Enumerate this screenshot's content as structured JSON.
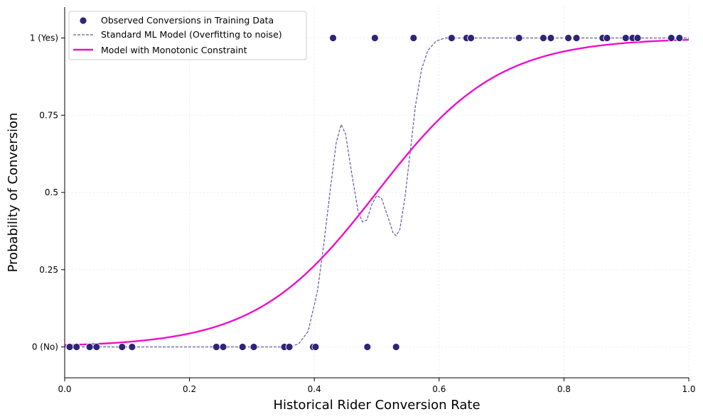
{
  "chart_data": {
    "type": "scatter",
    "xlabel": "Historical Rider Conversion Rate",
    "ylabel": "Probability of Conversion",
    "xlim": [
      0.0,
      1.0
    ],
    "ylim": [
      -0.1,
      1.1
    ],
    "grid": true,
    "legend_position": "top-left",
    "x_ticks": [
      {
        "value": 0.0,
        "label": "0.0"
      },
      {
        "value": 0.2,
        "label": "0.2"
      },
      {
        "value": 0.4,
        "label": "0.4"
      },
      {
        "value": 0.6,
        "label": "0.6"
      },
      {
        "value": 0.8,
        "label": "0.8"
      },
      {
        "value": 1.0,
        "label": "1.0"
      }
    ],
    "y_ticks": [
      {
        "value": 0.0,
        "label": "0 (No)"
      },
      {
        "value": 0.25,
        "label": "0.25"
      },
      {
        "value": 0.5,
        "label": "0.5"
      },
      {
        "value": 0.75,
        "label": "0.75"
      },
      {
        "value": 1.0,
        "label": "1 (Yes)"
      }
    ],
    "series": [
      {
        "name": "Observed Conversions in Training Data",
        "kind": "scatter",
        "color": "#2e2478",
        "points": [
          [
            0.008,
            0
          ],
          [
            0.019,
            0
          ],
          [
            0.04,
            0
          ],
          [
            0.051,
            0
          ],
          [
            0.092,
            0
          ],
          [
            0.108,
            0
          ],
          [
            0.243,
            0
          ],
          [
            0.254,
            0
          ],
          [
            0.285,
            0
          ],
          [
            0.303,
            0
          ],
          [
            0.352,
            0
          ],
          [
            0.36,
            0
          ],
          [
            0.398,
            0
          ],
          [
            0.402,
            0
          ],
          [
            0.485,
            0
          ],
          [
            0.531,
            0
          ],
          [
            0.43,
            1
          ],
          [
            0.497,
            1
          ],
          [
            0.559,
            1
          ],
          [
            0.62,
            1
          ],
          [
            0.644,
            1
          ],
          [
            0.651,
            1
          ],
          [
            0.728,
            1
          ],
          [
            0.767,
            1
          ],
          [
            0.779,
            1
          ],
          [
            0.807,
            1
          ],
          [
            0.82,
            1
          ],
          [
            0.862,
            1
          ],
          [
            0.869,
            1
          ],
          [
            0.899,
            1
          ],
          [
            0.91,
            1
          ],
          [
            0.918,
            1
          ],
          [
            0.972,
            1
          ],
          [
            0.985,
            1
          ]
        ]
      },
      {
        "name": "Standard ML Model (Overfitting to noise)",
        "kind": "line",
        "style": "dashed",
        "color": "#6656a8",
        "points": [
          [
            0.0,
            0.0
          ],
          [
            0.36,
            0.0
          ],
          [
            0.375,
            0.01
          ],
          [
            0.39,
            0.05
          ],
          [
            0.405,
            0.18
          ],
          [
            0.415,
            0.33
          ],
          [
            0.425,
            0.5
          ],
          [
            0.435,
            0.66
          ],
          [
            0.443,
            0.72
          ],
          [
            0.45,
            0.69
          ],
          [
            0.46,
            0.56
          ],
          [
            0.47,
            0.44
          ],
          [
            0.477,
            0.405
          ],
          [
            0.484,
            0.41
          ],
          [
            0.492,
            0.46
          ],
          [
            0.5,
            0.49
          ],
          [
            0.508,
            0.48
          ],
          [
            0.518,
            0.42
          ],
          [
            0.526,
            0.37
          ],
          [
            0.531,
            0.36
          ],
          [
            0.537,
            0.38
          ],
          [
            0.545,
            0.48
          ],
          [
            0.553,
            0.62
          ],
          [
            0.562,
            0.78
          ],
          [
            0.572,
            0.9
          ],
          [
            0.582,
            0.96
          ],
          [
            0.595,
            0.99
          ],
          [
            0.61,
            1.0
          ],
          [
            1.0,
            1.0
          ]
        ]
      },
      {
        "name": "Model with Monotonic Constraint",
        "kind": "logistic",
        "color": "#ee10c8",
        "midpoint": 0.5,
        "steepness": 10.3
      }
    ]
  }
}
